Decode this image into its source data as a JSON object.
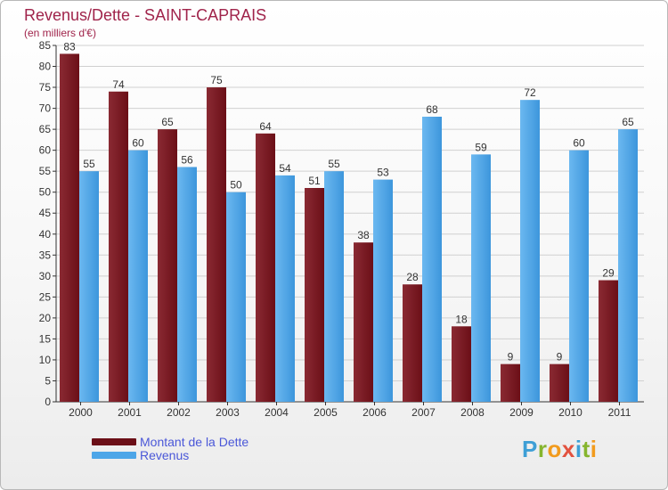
{
  "title": "Revenus/Dette - SAINT-CAPRAIS",
  "subtitle": "(en milliers d'€)",
  "logo": "Proxiti",
  "colors": {
    "dette": "#6b0f17",
    "revenus": "#4da6e8",
    "axis": "#333333",
    "grid": "#d0d0d0",
    "title": "#a0244b"
  },
  "chart_data": {
    "type": "bar",
    "categories": [
      "2000",
      "2001",
      "2002",
      "2003",
      "2004",
      "2005",
      "2006",
      "2007",
      "2008",
      "2009",
      "2010",
      "2011"
    ],
    "series": [
      {
        "name": "Montant de la Dette",
        "values": [
          83,
          74,
          65,
          75,
          64,
          51,
          38,
          28,
          18,
          9,
          9,
          29
        ]
      },
      {
        "name": "Revenus",
        "values": [
          55,
          60,
          56,
          50,
          54,
          55,
          53,
          68,
          59,
          72,
          60,
          65
        ]
      }
    ],
    "ylim": [
      0,
      85
    ],
    "yticks": [
      0,
      5,
      10,
      15,
      20,
      25,
      30,
      35,
      40,
      45,
      50,
      55,
      60,
      65,
      70,
      75,
      80,
      85
    ],
    "grid": true,
    "legend": "bottom-left"
  }
}
